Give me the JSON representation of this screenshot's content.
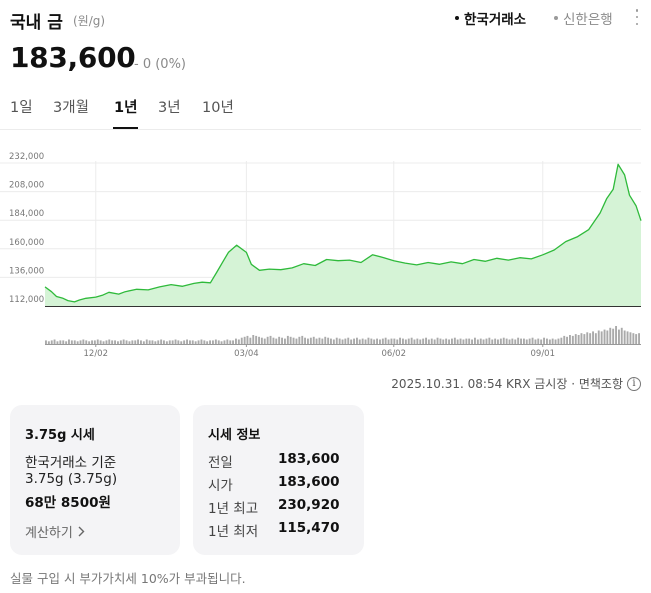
{
  "header": {
    "title": "국내 금",
    "unit": "(원/g)",
    "sources": [
      "한국거래소",
      "신한은행"
    ],
    "active_source": "한국거래소"
  },
  "quote": {
    "price": "183,600",
    "change": "- 0 (0%)"
  },
  "tabs": [
    {
      "label": "1일",
      "active": false
    },
    {
      "label": "3개월",
      "active": false
    },
    {
      "label": "1년",
      "active": true
    },
    {
      "label": "3년",
      "active": false
    },
    {
      "label": "10년",
      "active": false
    }
  ],
  "chart_data": {
    "type": "area",
    "y_tick_labels": [
      "232,000",
      "208,000",
      "184,000",
      "160,000",
      "136,000",
      "112,000"
    ],
    "ylim": [
      112000,
      232000
    ],
    "x_tick_labels": [
      "12/02",
      "03/04",
      "06/02",
      "09/01"
    ],
    "line_color": "#2fba3b",
    "fill_color": "#d5f3d6",
    "grid": true,
    "series": [
      {
        "x": [
          "2024-11-01",
          "2024-11-05",
          "2024-11-08",
          "2024-11-12",
          "2024-11-15",
          "2024-11-19",
          "2024-11-22",
          "2024-11-26",
          "2024-12-02",
          "2024-12-06",
          "2024-12-10",
          "2024-12-16",
          "2024-12-20",
          "2024-12-27",
          "2025-01-03",
          "2025-01-10",
          "2025-01-17",
          "2025-01-24",
          "2025-01-31",
          "2025-02-05",
          "2025-02-10",
          "2025-02-14",
          "2025-02-18",
          "2025-02-21",
          "2025-02-26",
          "2025-03-04",
          "2025-03-07",
          "2025-03-12",
          "2025-03-18",
          "2025-03-25",
          "2025-04-01",
          "2025-04-08",
          "2025-04-15",
          "2025-04-22",
          "2025-04-29",
          "2025-05-06",
          "2025-05-13",
          "2025-05-20",
          "2025-05-27",
          "2025-06-02",
          "2025-06-09",
          "2025-06-16",
          "2025-06-23",
          "2025-06-30",
          "2025-07-07",
          "2025-07-14",
          "2025-07-21",
          "2025-07-28",
          "2025-08-04",
          "2025-08-11",
          "2025-08-18",
          "2025-08-25",
          "2025-09-01",
          "2025-09-08",
          "2025-09-15",
          "2025-09-22",
          "2025-09-29",
          "2025-10-06",
          "2025-10-10",
          "2025-10-14",
          "2025-10-17",
          "2025-10-21",
          "2025-10-24",
          "2025-10-28",
          "2025-10-31"
        ],
        "y": [
          128000,
          124000,
          120000,
          118500,
          116500,
          115470,
          117000,
          118500,
          119500,
          121000,
          123500,
          122000,
          124000,
          126000,
          125500,
          128000,
          130000,
          128500,
          131000,
          132000,
          131500,
          140500,
          150000,
          157000,
          163000,
          157000,
          147000,
          142000,
          143000,
          142500,
          144000,
          147500,
          146000,
          151000,
          150000,
          150500,
          148500,
          155000,
          152500,
          150000,
          148000,
          146500,
          148500,
          147000,
          149000,
          147500,
          151000,
          149500,
          152000,
          150500,
          152500,
          151500,
          155000,
          159000,
          166000,
          170000,
          176000,
          190000,
          202000,
          210000,
          230920,
          222000,
          205000,
          196000,
          183600
        ]
      }
    ],
    "volume": [
      4,
      3,
      4,
      5,
      3,
      4,
      4,
      3,
      5,
      4,
      4,
      3,
      4,
      5,
      4,
      3,
      4,
      4,
      5,
      4,
      3,
      4,
      5,
      4,
      4,
      3,
      4,
      5,
      4,
      3,
      4,
      4,
      5,
      4,
      3,
      5,
      4,
      4,
      3,
      4,
      5,
      4,
      3,
      4,
      4,
      5,
      4,
      3,
      4,
      5,
      4,
      4,
      3,
      4,
      5,
      4,
      3,
      4,
      4,
      5,
      4,
      3,
      4,
      5,
      4,
      4,
      6,
      5,
      7,
      8,
      9,
      7,
      10,
      9,
      8,
      7,
      6,
      8,
      9,
      7,
      6,
      8,
      7,
      6,
      9,
      8,
      7,
      6,
      8,
      9,
      7,
      6,
      7,
      8,
      6,
      7,
      6,
      8,
      7,
      6,
      5,
      7,
      6,
      5,
      6,
      7,
      5,
      6,
      7,
      5,
      6,
      5,
      7,
      6,
      5,
      6,
      5,
      6,
      7,
      5,
      6,
      6,
      5,
      7,
      6,
      5,
      6,
      7,
      5,
      6,
      5,
      6,
      7,
      5,
      6,
      5,
      7,
      6,
      5,
      6,
      5,
      6,
      7,
      5,
      6,
      5,
      6,
      6,
      5,
      7,
      5,
      6,
      5,
      6,
      7,
      5,
      6,
      5,
      6,
      7,
      6,
      5,
      6,
      5,
      7,
      6,
      6,
      5,
      6,
      7,
      5,
      6,
      5,
      7,
      6,
      5,
      6,
      5,
      6,
      7,
      9,
      8,
      10,
      9,
      11,
      10,
      12,
      11,
      13,
      12,
      14,
      12,
      15,
      14,
      16,
      15,
      18,
      17,
      20,
      16,
      18,
      15,
      14,
      13,
      12,
      11,
      12
    ]
  },
  "timestamp": "2025.10.31. 08:54 KRX 금시장 · 면책조항",
  "card_left": {
    "title": "3.75g 시세",
    "line1": "한국거래소 기준",
    "line2": "3.75g (3.75g)",
    "line3": "68만 8500원",
    "link": "계산하기"
  },
  "card_right": {
    "title": "시세 정보",
    "rows": [
      {
        "label": "전일",
        "value": "183,600"
      },
      {
        "label": "시가",
        "value": "183,600"
      },
      {
        "label": "1년 최고",
        "value": "230,920"
      },
      {
        "label": "1년 최저",
        "value": "115,470"
      }
    ]
  },
  "footnote": "실물 구입 시 부가가치세 10%가 부과됩니다."
}
